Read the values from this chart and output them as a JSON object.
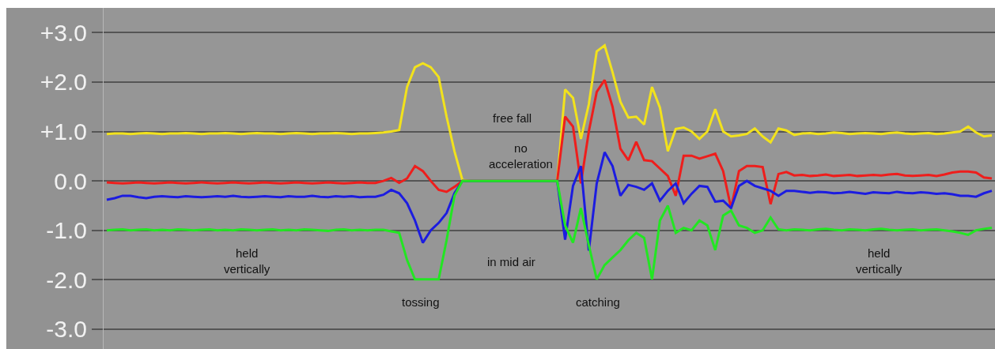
{
  "chart_data": {
    "type": "line",
    "categories": [
      null,
      null,
      null,
      null,
      null,
      null,
      null,
      null,
      null,
      null,
      null,
      null,
      null,
      null,
      null,
      null,
      null,
      null,
      null,
      null,
      null,
      null,
      null,
      null,
      null,
      null,
      null,
      null,
      null,
      null,
      null,
      null,
      null,
      null,
      null,
      null,
      null,
      null,
      null,
      null,
      null,
      null,
      null,
      null,
      null,
      null,
      null,
      null,
      null,
      null,
      null,
      null,
      null,
      null,
      null,
      null,
      null,
      null,
      null,
      null,
      null,
      null,
      null,
      null,
      null,
      null,
      null,
      null,
      null,
      null,
      null,
      null,
      null,
      null,
      null,
      null,
      null,
      null,
      null,
      null,
      null,
      null,
      null,
      null,
      null,
      null,
      null,
      null,
      null,
      null,
      null,
      null,
      null,
      null,
      null,
      null,
      null,
      null,
      null,
      null,
      null,
      null,
      null,
      null,
      null,
      null,
      null,
      null,
      null,
      null,
      null,
      null,
      null
    ],
    "series": [
      {
        "color": "#f2e21c",
        "values": [
          0.95,
          0.96,
          0.96,
          0.95,
          0.96,
          0.97,
          0.96,
          0.95,
          0.96,
          0.96,
          0.97,
          0.96,
          0.95,
          0.96,
          0.96,
          0.97,
          0.96,
          0.95,
          0.96,
          0.97,
          0.96,
          0.96,
          0.95,
          0.96,
          0.97,
          0.96,
          0.95,
          0.96,
          0.96,
          0.97,
          0.96,
          0.95,
          0.96,
          0.96,
          0.97,
          0.98,
          1.0,
          1.03,
          1.9,
          2.3,
          2.38,
          2.3,
          2.1,
          1.3,
          0.6,
          0.02,
          0,
          0,
          0,
          0,
          0,
          0,
          0,
          0,
          0,
          0,
          0,
          0,
          1.85,
          1.68,
          0.85,
          1.55,
          2.62,
          2.74,
          2.2,
          1.6,
          1.28,
          1.3,
          1.14,
          1.9,
          1.48,
          0.6,
          1.05,
          1.08,
          1.0,
          0.85,
          1.0,
          1.45,
          1.0,
          0.9,
          0.92,
          0.95,
          1.06,
          0.9,
          0.78,
          1.06,
          1.02,
          0.93,
          0.96,
          0.97,
          0.95,
          0.96,
          0.98,
          0.97,
          0.95,
          0.96,
          0.97,
          0.96,
          0.95,
          0.97,
          0.98,
          0.96,
          0.95,
          0.96,
          0.97,
          0.95,
          0.96,
          0.98,
          1.0,
          1.1,
          0.98,
          0.9,
          0.92
        ]
      },
      {
        "color": "#ee1e1c",
        "values": [
          -0.03,
          -0.04,
          -0.05,
          -0.04,
          -0.03,
          -0.04,
          -0.05,
          -0.04,
          -0.03,
          -0.04,
          -0.05,
          -0.04,
          -0.03,
          -0.04,
          -0.05,
          -0.04,
          -0.03,
          -0.04,
          -0.05,
          -0.04,
          -0.03,
          -0.04,
          -0.05,
          -0.04,
          -0.03,
          -0.04,
          -0.05,
          -0.04,
          -0.03,
          -0.04,
          -0.05,
          -0.04,
          -0.03,
          -0.04,
          -0.04,
          0.0,
          0.06,
          -0.04,
          0.05,
          0.3,
          0.2,
          0.0,
          -0.18,
          -0.22,
          -0.12,
          0,
          0,
          0,
          0,
          0,
          0,
          0,
          0,
          0,
          0,
          0,
          0,
          0,
          1.3,
          1.1,
          -0.05,
          1.0,
          1.8,
          2.04,
          1.5,
          0.65,
          0.42,
          0.79,
          0.42,
          0.4,
          0.25,
          0.1,
          -0.3,
          0.51,
          0.51,
          0.45,
          0.5,
          0.55,
          0.2,
          -0.55,
          0.2,
          0.3,
          0.3,
          0.28,
          -0.47,
          0.14,
          0.18,
          0.11,
          0.12,
          0.1,
          0.11,
          0.13,
          0.1,
          0.11,
          0.12,
          0.1,
          0.11,
          0.12,
          0.11,
          0.13,
          0.14,
          0.11,
          0.1,
          0.11,
          0.12,
          0.1,
          0.13,
          0.17,
          0.19,
          0.19,
          0.17,
          0.07,
          0.05
        ]
      },
      {
        "color": "#1c1ce0",
        "values": [
          -0.38,
          -0.35,
          -0.3,
          -0.3,
          -0.33,
          -0.35,
          -0.32,
          -0.31,
          -0.32,
          -0.33,
          -0.31,
          -0.32,
          -0.33,
          -0.32,
          -0.31,
          -0.32,
          -0.3,
          -0.32,
          -0.33,
          -0.32,
          -0.31,
          -0.32,
          -0.33,
          -0.31,
          -0.32,
          -0.32,
          -0.3,
          -0.32,
          -0.33,
          -0.31,
          -0.32,
          -0.31,
          -0.33,
          -0.32,
          -0.32,
          -0.28,
          -0.18,
          -0.25,
          -0.45,
          -0.8,
          -1.25,
          -1.0,
          -0.85,
          -0.65,
          -0.25,
          0,
          0,
          0,
          0,
          0,
          0,
          0,
          0,
          0,
          0,
          0,
          0,
          0,
          -1.19,
          -0.1,
          0.3,
          -1.41,
          -0.05,
          0.58,
          0.3,
          -0.3,
          -0.08,
          -0.12,
          -0.18,
          -0.05,
          -0.4,
          -0.2,
          -0.05,
          -0.45,
          -0.26,
          -0.1,
          -0.12,
          -0.42,
          -0.4,
          -0.55,
          -0.1,
          0.0,
          -0.1,
          -0.15,
          -0.2,
          -0.3,
          -0.2,
          -0.2,
          -0.22,
          -0.24,
          -0.22,
          -0.23,
          -0.25,
          -0.24,
          -0.22,
          -0.24,
          -0.26,
          -0.23,
          -0.24,
          -0.25,
          -0.22,
          -0.24,
          -0.25,
          -0.23,
          -0.24,
          -0.26,
          -0.25,
          -0.27,
          -0.3,
          -0.3,
          -0.32,
          -0.25,
          -0.2
        ]
      },
      {
        "color": "#22e622",
        "values": [
          -1.0,
          -0.99,
          -0.98,
          -1.0,
          -0.99,
          -0.98,
          -1.0,
          -0.99,
          -1.0,
          -0.98,
          -0.99,
          -1.0,
          -0.99,
          -0.98,
          -1.0,
          -0.99,
          -1.0,
          -0.98,
          -0.99,
          -1.0,
          -0.99,
          -0.98,
          -1.0,
          -0.99,
          -1.0,
          -0.98,
          -0.99,
          -1.0,
          -1.01,
          -0.99,
          -0.98,
          -1.0,
          -0.99,
          -1.0,
          -0.99,
          -0.99,
          -1.02,
          -1.05,
          -1.6,
          -1.99,
          -1.99,
          -1.99,
          -1.99,
          -1.2,
          -0.3,
          0,
          0,
          0,
          0,
          0,
          0,
          0,
          0,
          0,
          0,
          0,
          0,
          0,
          -0.9,
          -1.25,
          -0.55,
          -1.3,
          -1.99,
          -1.7,
          -1.55,
          -1.4,
          -1.2,
          -1.05,
          -1.15,
          -1.99,
          -0.8,
          -0.5,
          -1.05,
          -0.95,
          -1.0,
          -0.8,
          -0.9,
          -1.4,
          -0.7,
          -0.6,
          -0.9,
          -0.95,
          -1.05,
          -1.0,
          -0.74,
          -0.98,
          -1.0,
          -0.98,
          -0.99,
          -1.0,
          -0.98,
          -0.97,
          -0.99,
          -1.0,
          -0.98,
          -0.99,
          -1.0,
          -0.98,
          -0.97,
          -0.99,
          -1.0,
          -0.99,
          -0.98,
          -1.0,
          -0.99,
          -0.98,
          -1.0,
          -1.02,
          -1.05,
          -1.09,
          -1.0,
          -0.97,
          -0.95
        ]
      }
    ],
    "ylim": [
      -3.4,
      3.5
    ],
    "yticks": [
      {
        "value": 3,
        "label": "+3.0"
      },
      {
        "value": 2,
        "label": "+2.0"
      },
      {
        "value": 1,
        "label": "+1.0"
      },
      {
        "value": 0,
        "label": "0.0"
      },
      {
        "value": -1,
        "label": "-1.0"
      },
      {
        "value": -2,
        "label": "-2.0"
      },
      {
        "value": -3,
        "label": "-3.0"
      }
    ],
    "tick_labels": "y",
    "grid": "y",
    "line_style": "solid",
    "annotations": [
      "held\nvertically",
      "free fall",
      "no\nacceleration",
      "tossing",
      "in mid air",
      "catching",
      "held\nvertically"
    ]
  }
}
